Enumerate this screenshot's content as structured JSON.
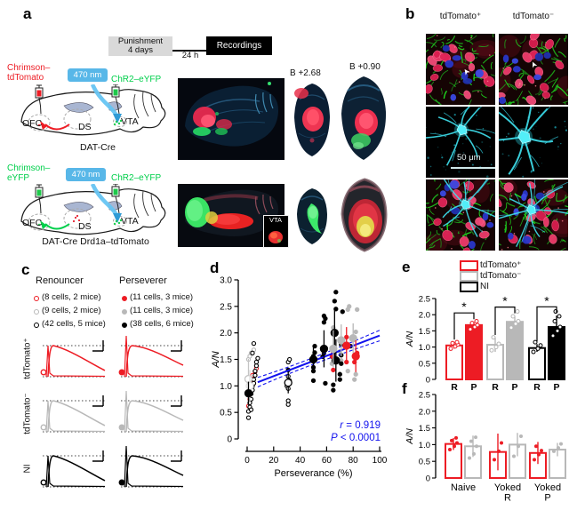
{
  "panels": {
    "a": "a",
    "b": "b",
    "c": "c",
    "d": "d",
    "e": "e",
    "f": "f"
  },
  "colors": {
    "red": "#ed1c24",
    "gray": "#b8b8b8",
    "black": "#000000",
    "green": "#00cf4b",
    "light_blue": "#58b7e8",
    "stats_blue": "#1212ee"
  },
  "panel_a": {
    "timeline": {
      "stage1_line1": "Punishment",
      "stage1_line2": "4 days",
      "interval": "24 h",
      "stage2": "Recordings"
    },
    "top_schematic": {
      "construct_left_line1": "Chrimson–",
      "construct_left_line2": "tdTomato",
      "light": "470 nm",
      "construct_right": "ChR2–eYFP",
      "region1": "OFC",
      "region2": "DS",
      "region3": "VTA",
      "caption": "DAT-Cre"
    },
    "bottom_schematic": {
      "construct_left_line1": "Chrimson–",
      "construct_left_line2": "eYFP",
      "light": "470 nm",
      "construct_right": "ChR2–eYFP",
      "region1": "OFC",
      "region2": "DS",
      "region3": "VTA",
      "caption": "DAT-Cre Drd1a–tdTomato"
    },
    "section1_label": "B +2.68",
    "section2_label": "B +0.90",
    "inset_label": "VTA"
  },
  "panel_b": {
    "col1_header": "tdTomato⁺",
    "col2_header": "tdTomato⁻",
    "scale_bar": "50 μm"
  },
  "panel_c": {
    "col1_header": "Renouncer",
    "col2_header": "Perseverer",
    "row_labels": [
      "tdTomato⁺",
      "tdTomato⁻",
      "NI"
    ],
    "row_colors": [
      "#ed1c24",
      "#b8b8b8",
      "#000000"
    ],
    "legend_renouncer": [
      {
        "label": "(8 cells, 2 mice)",
        "color": "#ed1c24"
      },
      {
        "label": "(9 cells, 2 mice)",
        "color": "#b8b8b8"
      },
      {
        "label": "(42 cells, 5 mice)",
        "color": "#000000"
      }
    ],
    "legend_perseverer": [
      {
        "label": "(11 cells, 3 mice)",
        "color": "#ed1c24"
      },
      {
        "label": "(11 cells, 3 mice)",
        "color": "#b8b8b8"
      },
      {
        "label": "(38 cells, 6 mice)",
        "color": "#000000"
      }
    ]
  },
  "panel_e_legend": [
    {
      "label": "tdTomato⁺",
      "color": "#ed1c24"
    },
    {
      "label": "tdTomato⁻",
      "color": "#b8b8b8"
    },
    {
      "label": "NI",
      "color": "#000000"
    }
  ],
  "chart_data": [
    {
      "id": "d",
      "type": "scatter",
      "xlabel": "Perseverance (%)",
      "ylabel": "A/N",
      "xlim": [
        0,
        100
      ],
      "xticks": [
        0,
        20,
        40,
        60,
        80,
        100
      ],
      "ylim": [
        0,
        3
      ],
      "yticks": [
        "0",
        "0.5",
        "1.0",
        "1.5",
        "2.0",
        "2.5",
        "3.0"
      ],
      "regression": {
        "x0": 8,
        "y0": 1.07,
        "x1": 100,
        "y1": 1.95,
        "color": "#1212ee"
      },
      "stats": {
        "r_var": "r",
        "r_rest": " = 0.919",
        "p_var": "P",
        "p_rest": " < 0.0001",
        "color": "#1212ee"
      },
      "series": [
        {
          "name": "Renouncer tdTomato+",
          "marker": "open",
          "color": "#ed1c24",
          "points": [
            [
              1,
              0.62
            ],
            [
              2,
              0.92
            ],
            [
              3,
              1.12
            ],
            [
              4,
              1.2
            ],
            [
              6,
              1.27
            ],
            [
              7,
              1.33
            ],
            [
              2,
              0.75
            ],
            [
              5,
              1.05
            ]
          ]
        },
        {
          "name": "Renouncer tdTomato-",
          "marker": "open",
          "color": "#b8b8b8",
          "points": [
            [
              1,
              1.5
            ],
            [
              2,
              1.56
            ],
            [
              3,
              1.62
            ],
            [
              2,
              1.05
            ],
            [
              4,
              0.98
            ],
            [
              5,
              1.68
            ]
          ]
        },
        {
          "name": "Renouncer NI",
          "marker": "open",
          "color": "#000000",
          "points": [
            [
              1,
              0.4
            ],
            [
              1,
              0.52
            ],
            [
              2,
              0.6
            ],
            [
              2,
              0.68
            ],
            [
              3,
              0.75
            ],
            [
              3,
              0.85
            ],
            [
              4,
              0.92
            ],
            [
              4,
              1.0
            ],
            [
              5,
              1.05
            ],
            [
              5,
              1.12
            ],
            [
              6,
              1.2
            ],
            [
              6,
              1.28
            ],
            [
              7,
              1.38
            ],
            [
              7,
              1.45
            ],
            [
              8,
              1.52
            ],
            [
              4,
              1.62
            ],
            [
              5,
              1.8
            ],
            [
              3,
              0.55
            ],
            [
              31,
              0.65
            ],
            [
              31,
              0.72
            ],
            [
              30,
              1.0
            ],
            [
              31,
              1.05
            ],
            [
              32,
              1.1
            ],
            [
              31,
              1.18
            ],
            [
              31,
              1.45
            ],
            [
              32,
              1.5
            ],
            [
              31,
              0.95
            ]
          ]
        },
        {
          "name": "Perseverer tdTomato+",
          "marker": "filled",
          "color": "#ed1c24",
          "points": [
            [
              65,
              1.3
            ],
            [
              64,
              1.55
            ],
            [
              65,
              1.62
            ],
            [
              75,
              1.45
            ],
            [
              75,
              1.92
            ],
            [
              81,
              1.45
            ],
            [
              82,
              1.55
            ],
            [
              83,
              1.62
            ],
            [
              76,
              1.75
            ]
          ]
        },
        {
          "name": "Perseverer tdTomato-",
          "marker": "filled",
          "color": "#b8b8b8",
          "points": [
            [
              64,
              1.42
            ],
            [
              65,
              1.48
            ],
            [
              66,
              1.72
            ],
            [
              65,
              2.1
            ],
            [
              70,
              1.65
            ],
            [
              71,
              1.48
            ],
            [
              76,
              1.28
            ],
            [
              76,
              2.44
            ],
            [
              77,
              2.5
            ],
            [
              81,
              1.12
            ],
            [
              82,
              1.22
            ],
            [
              82,
              2.02
            ],
            [
              83,
              2.44
            ]
          ]
        },
        {
          "name": "Perseverer NI",
          "marker": "filled",
          "color": "#000000",
          "points": [
            [
              50,
              1.1
            ],
            [
              50,
              1.35
            ],
            [
              49,
              1.5
            ],
            [
              50,
              1.56
            ],
            [
              51,
              1.63
            ],
            [
              51,
              1.75
            ],
            [
              57,
              1.55
            ],
            [
              58,
              1.62
            ],
            [
              58,
              1.72
            ],
            [
              58,
              2.2
            ],
            [
              59,
              2.27
            ],
            [
              58,
              2.32
            ],
            [
              59,
              1.05
            ],
            [
              65,
              0.92
            ],
            [
              65,
              1.02
            ],
            [
              66,
              1.45
            ],
            [
              66,
              2.0
            ],
            [
              67,
              2.45
            ],
            [
              66,
              2.6
            ],
            [
              67,
              2.77
            ],
            [
              70,
              1.12
            ],
            [
              70,
              1.22
            ],
            [
              71,
              1.42
            ],
            [
              71,
              1.58
            ],
            [
              71,
              1.78
            ],
            [
              72,
              2.4
            ],
            [
              78,
              1.75
            ],
            [
              50,
              1.28
            ],
            [
              31,
              1.3
            ]
          ]
        }
      ],
      "means": [
        {
          "x": 1,
          "y": 1.13,
          "err": 0.38,
          "color": "#c4c4c4",
          "marker": "open"
        },
        {
          "x": 2,
          "y": 1.0,
          "err": 0.3,
          "color": "#dedede",
          "marker": "open"
        },
        {
          "x": 1,
          "y": 0.86,
          "err": 0.22,
          "color": "#000000",
          "marker": "filled"
        },
        {
          "x": 31,
          "y": 1.06,
          "err": 0.2,
          "color": "#000000",
          "marker": "open"
        },
        {
          "x": 50,
          "y": 1.5,
          "err": 0.22,
          "color": "#000000",
          "marker": "filled"
        },
        {
          "x": 58,
          "y": 1.7,
          "err": 0.35,
          "color": "#000000",
          "marker": "filled"
        },
        {
          "x": 66,
          "y": 2.0,
          "err": 0.45,
          "color": "#000000",
          "marker": "filled"
        },
        {
          "x": 67,
          "y": 1.48,
          "err": 0.4,
          "color": "#000000",
          "marker": "filled"
        },
        {
          "x": 65,
          "y": 1.7,
          "err": 0.35,
          "color": "#b8b8b8",
          "marker": "filled"
        },
        {
          "x": 71,
          "y": 1.86,
          "err": 0.3,
          "color": "#b8b8b8",
          "marker": "filled"
        },
        {
          "x": 75,
          "y": 1.76,
          "err": 0.35,
          "color": "#ed1c24",
          "marker": "filled"
        },
        {
          "x": 80,
          "y": 1.9,
          "err": 0.28,
          "color": "#b8b8b8",
          "marker": "filled"
        },
        {
          "x": 82,
          "y": 1.56,
          "err": 0.3,
          "color": "#ed1c24",
          "marker": "filled"
        }
      ]
    },
    {
      "id": "e",
      "type": "bar",
      "ylabel": "A/N",
      "ylim": [
        0,
        2.5
      ],
      "yticks": [
        "0",
        "0.5",
        "1.0",
        "1.5",
        "2.0",
        "2.5"
      ],
      "groups": [
        {
          "name": "tdTomato⁺",
          "color": "#ed1c24",
          "sig": "*",
          "bars": [
            {
              "label": "R",
              "value": 1.05,
              "err": 0.1,
              "fill": "open",
              "points": [
                0.95,
                1.02,
                1.08,
                1.12,
                1.15
              ]
            },
            {
              "label": "P",
              "value": 1.68,
              "err": 0.1,
              "fill": "solid",
              "points": [
                1.55,
                1.62,
                1.68,
                1.74,
                1.8
              ]
            }
          ]
        },
        {
          "name": "tdTomato⁻",
          "color": "#b8b8b8",
          "sig": "*",
          "bars": [
            {
              "label": "R",
              "value": 1.07,
              "err": 0.22,
              "fill": "open",
              "points": [
                0.9,
                1.0,
                1.1,
                1.3
              ]
            },
            {
              "label": "P",
              "value": 1.78,
              "err": 0.18,
              "fill": "solid",
              "points": [
                1.6,
                1.72,
                1.8,
                1.95,
                2.1
              ]
            }
          ]
        },
        {
          "name": "NI",
          "color": "#000000",
          "sig": "*",
          "bars": [
            {
              "label": "R",
              "value": 0.97,
              "err": 0.12,
              "fill": "open",
              "points": [
                0.85,
                0.95,
                1.05,
                1.15
              ]
            },
            {
              "label": "P",
              "value": 1.62,
              "err": 0.35,
              "fill": "solid",
              "points": [
                1.35,
                1.5,
                1.62,
                1.8,
                1.95,
                2.1
              ]
            }
          ]
        }
      ]
    },
    {
      "id": "f",
      "type": "bar",
      "ylabel": "A/N",
      "ylim": [
        0,
        2.5
      ],
      "yticks": [
        "0",
        "0.5",
        "1.0",
        "1.5",
        "2.0",
        "2.5"
      ],
      "groups": [
        {
          "name": "Naive",
          "bars": [
            {
              "color": "#ed1c24",
              "value": 1.02,
              "err": 0.18,
              "fill": "open",
              "points": [
                0.85,
                0.95,
                1.05,
                1.12,
                1.2
              ]
            },
            {
              "color": "#b8b8b8",
              "value": 0.95,
              "err": 0.32,
              "fill": "open",
              "points": [
                0.6,
                0.72,
                0.95,
                1.1,
                1.22
              ]
            }
          ]
        },
        {
          "name": "Yoked\nR",
          "bars": [
            {
              "color": "#ed1c24",
              "value": 0.78,
              "err": 0.55,
              "fill": "open",
              "points": [
                0.55,
                0.8,
                1.05
              ]
            },
            {
              "color": "#b8b8b8",
              "value": 1.0,
              "err": 0.35,
              "fill": "open",
              "points": [
                0.65,
                0.95,
                1.25
              ]
            }
          ]
        },
        {
          "name": "Yoked\nP",
          "bars": [
            {
              "color": "#ed1c24",
              "value": 0.75,
              "err": 0.33,
              "fill": "open",
              "points": [
                0.55,
                0.7,
                0.82,
                0.95
              ]
            },
            {
              "color": "#b8b8b8",
              "value": 0.85,
              "err": 0.2,
              "fill": "open",
              "points": [
                0.8,
                0.9,
                1.02
              ]
            }
          ]
        }
      ]
    }
  ]
}
